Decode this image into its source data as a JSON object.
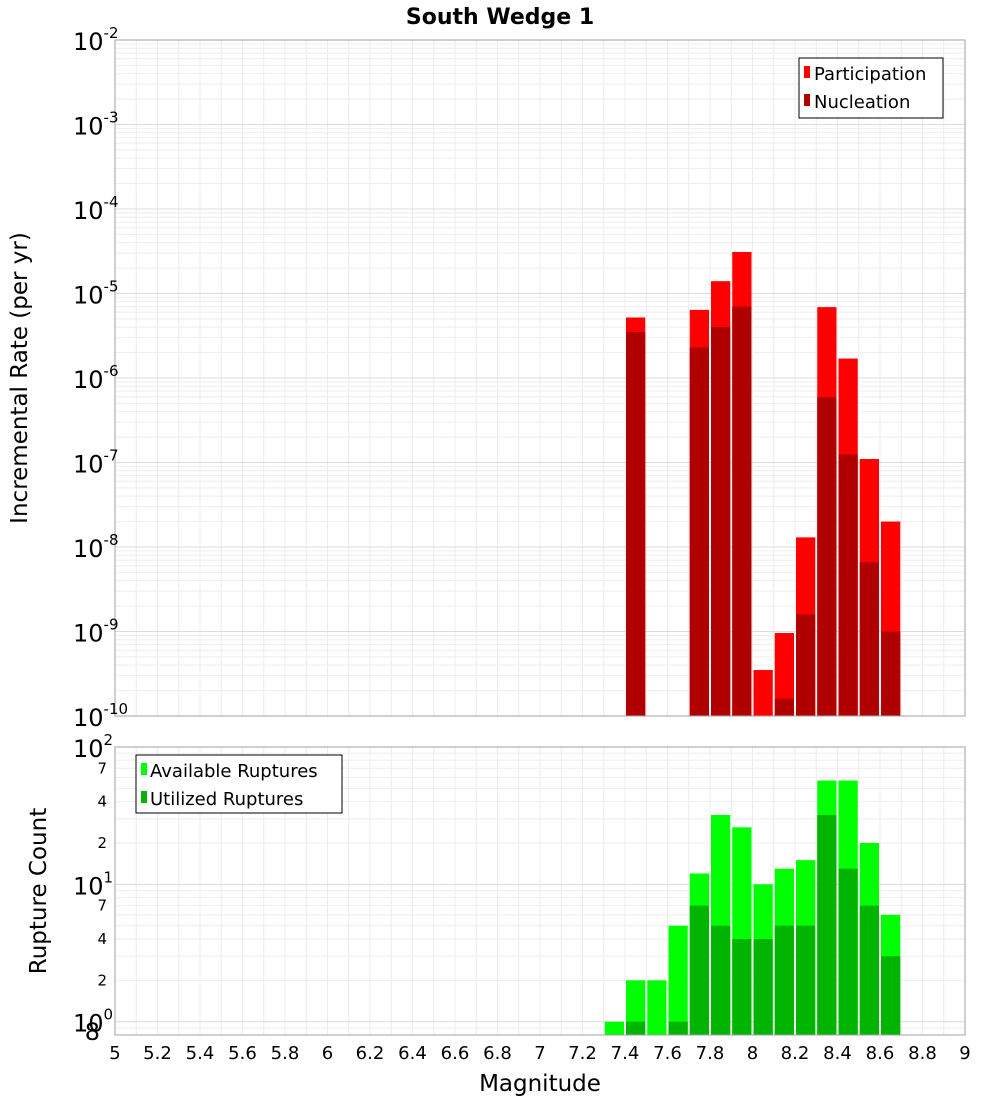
{
  "title": "South Wedge 1",
  "colors": {
    "participation": "#ff0000",
    "nucleation": "#b00000",
    "available": "#00ff00",
    "utilized": "#00b400"
  },
  "chart_data": [
    {
      "type": "bar",
      "title": "South Wedge 1",
      "ylabel": "Incremental Rate (per yr)",
      "xlabel": "",
      "yscale": "log",
      "xlim": [
        5,
        9
      ],
      "ylim": [
        1e-10,
        0.01
      ],
      "y_tick_labels": [
        {
          "base": "10",
          "exp": "-2"
        },
        {
          "base": "10",
          "exp": "-3"
        },
        {
          "base": "10",
          "exp": "-4"
        },
        {
          "base": "10",
          "exp": "-5"
        },
        {
          "base": "10",
          "exp": "-6"
        },
        {
          "base": "10",
          "exp": "-7"
        },
        {
          "base": "10",
          "exp": "-8"
        },
        {
          "base": "10",
          "exp": "-9"
        },
        {
          "base": "10",
          "exp": "-10"
        }
      ],
      "legend": {
        "position": "top-right",
        "entries": [
          "Participation",
          "Nucleation"
        ]
      },
      "grid": true,
      "series": [
        {
          "name": "Participation",
          "points": [
            {
              "x": 7.45,
              "y": 5.2e-06
            },
            {
              "x": 7.75,
              "y": 6.4e-06
            },
            {
              "x": 7.85,
              "y": 1.4e-05
            },
            {
              "x": 7.95,
              "y": 3.1e-05
            },
            {
              "x": 8.05,
              "y": 3.5e-10
            },
            {
              "x": 8.15,
              "y": 9.6e-10
            },
            {
              "x": 8.25,
              "y": 1.3e-08
            },
            {
              "x": 8.35,
              "y": 6.9e-06
            },
            {
              "x": 8.45,
              "y": 1.7e-06
            },
            {
              "x": 8.55,
              "y": 1.1e-07
            },
            {
              "x": 8.65,
              "y": 2e-08
            }
          ]
        },
        {
          "name": "Nucleation",
          "points": [
            {
              "x": 7.45,
              "y": 3.5e-06
            },
            {
              "x": 7.75,
              "y": 2.3e-06
            },
            {
              "x": 7.85,
              "y": 4e-06
            },
            {
              "x": 7.95,
              "y": 7e-06
            },
            {
              "x": 8.15,
              "y": 1.6e-10
            },
            {
              "x": 8.25,
              "y": 1.6e-09
            },
            {
              "x": 8.35,
              "y": 5.9e-07
            },
            {
              "x": 8.45,
              "y": 1.25e-07
            },
            {
              "x": 8.55,
              "y": 6.6e-09
            },
            {
              "x": 8.65,
              "y": 1e-09
            }
          ]
        }
      ]
    },
    {
      "type": "bar",
      "xlabel": "Magnitude",
      "ylabel": "Rupture Count",
      "yscale": "log",
      "xlim": [
        5,
        9
      ],
      "ylim": [
        0.8,
        100
      ],
      "x_tick_labels": [
        "5",
        "5.2",
        "5.4",
        "5.6",
        "5.8",
        "6",
        "6.2",
        "6.4",
        "6.6",
        "6.8",
        "7",
        "7.2",
        "7.4",
        "7.6",
        "7.8",
        "8",
        "8.2",
        "8.4",
        "8.6",
        "8.8",
        "9"
      ],
      "y_tick_labels": [
        {
          "base": "10",
          "exp": "2"
        },
        {
          "base": "10",
          "exp": "1"
        },
        {
          "base": "10",
          "exp": "0"
        }
      ],
      "y_minor_tick_labels": [
        "7",
        "4",
        "2",
        "7",
        "4",
        "2",
        "8"
      ],
      "legend": {
        "position": "top-left",
        "entries": [
          "Available Ruptures",
          "Utilized Ruptures"
        ]
      },
      "grid": true,
      "series": [
        {
          "name": "Available Ruptures",
          "points": [
            {
              "x": 7.35,
              "y": 1
            },
            {
              "x": 7.45,
              "y": 2
            },
            {
              "x": 7.55,
              "y": 2
            },
            {
              "x": 7.65,
              "y": 5
            },
            {
              "x": 7.75,
              "y": 12
            },
            {
              "x": 7.85,
              "y": 32
            },
            {
              "x": 7.95,
              "y": 26
            },
            {
              "x": 8.05,
              "y": 10
            },
            {
              "x": 8.15,
              "y": 13
            },
            {
              "x": 8.25,
              "y": 15
            },
            {
              "x": 8.35,
              "y": 57
            },
            {
              "x": 8.45,
              "y": 57
            },
            {
              "x": 8.55,
              "y": 20
            },
            {
              "x": 8.65,
              "y": 6
            }
          ]
        },
        {
          "name": "Utilized Ruptures",
          "points": [
            {
              "x": 7.45,
              "y": 1
            },
            {
              "x": 7.65,
              "y": 1
            },
            {
              "x": 7.75,
              "y": 7
            },
            {
              "x": 7.85,
              "y": 5
            },
            {
              "x": 7.95,
              "y": 4
            },
            {
              "x": 8.05,
              "y": 4
            },
            {
              "x": 8.15,
              "y": 5
            },
            {
              "x": 8.25,
              "y": 5
            },
            {
              "x": 8.35,
              "y": 32
            },
            {
              "x": 8.45,
              "y": 13
            },
            {
              "x": 8.55,
              "y": 7
            },
            {
              "x": 8.65,
              "y": 3
            }
          ]
        }
      ]
    }
  ]
}
